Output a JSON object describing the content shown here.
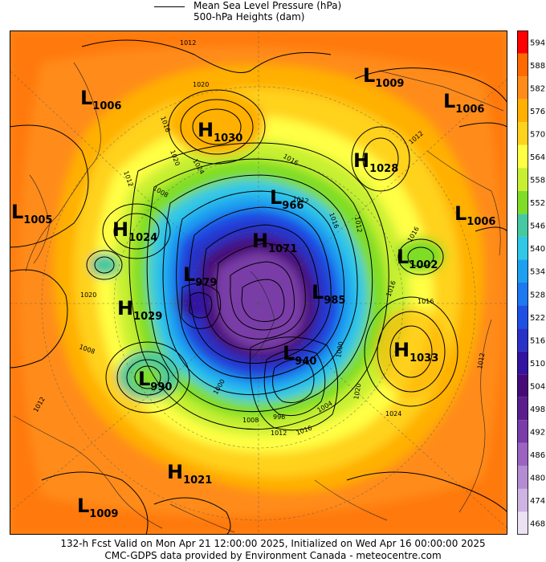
{
  "legend": {
    "line_label": "Mean Sea Level Pressure (hPa)",
    "fill_label": "500-hPa Heights (dam)"
  },
  "colorbar": {
    "labels": [
      "594",
      "588",
      "582",
      "576",
      "570",
      "564",
      "558",
      "552",
      "546",
      "540",
      "534",
      "528",
      "522",
      "516",
      "510",
      "504",
      "498",
      "492",
      "486",
      "480",
      "474",
      "468"
    ],
    "colors": [
      "#ff0000",
      "#ff6a00",
      "#ff8c1a",
      "#ffb000",
      "#ffd21e",
      "#ffff44",
      "#c8f032",
      "#7fdd28",
      "#46c8a0",
      "#30c8e6",
      "#1ea0f0",
      "#1e78f0",
      "#1e50e6",
      "#2832c8",
      "#3214a0",
      "#460a78",
      "#5a1e8c",
      "#7a3ca8",
      "#9a64c0",
      "#b48cd2",
      "#cdb4e2",
      "#ece2f4"
    ]
  },
  "lows": [
    {
      "letter": "L",
      "value": "1006"
    },
    {
      "letter": "L",
      "value": "1009"
    },
    {
      "letter": "L",
      "value": "1006"
    },
    {
      "letter": "L",
      "value": "1005"
    },
    {
      "letter": "L",
      "value": "1006"
    },
    {
      "letter": "L",
      "value": "966"
    },
    {
      "letter": "L",
      "value": "1002"
    },
    {
      "letter": "L",
      "value": "979"
    },
    {
      "letter": "L",
      "value": "985"
    },
    {
      "letter": "L",
      "value": "940"
    },
    {
      "letter": "L",
      "value": "990"
    },
    {
      "letter": "L",
      "value": "1009"
    }
  ],
  "highs": [
    {
      "letter": "H",
      "value": "1030"
    },
    {
      "letter": "H",
      "value": "1028"
    },
    {
      "letter": "H",
      "value": "1024"
    },
    {
      "letter": "H",
      "value": "1071"
    },
    {
      "letter": "H",
      "value": "1029"
    },
    {
      "letter": "H",
      "value": "1033"
    },
    {
      "letter": "H",
      "value": "1021"
    }
  ],
  "isobar_labels": [
    "1012",
    "1020",
    "1016",
    "1020",
    "1024",
    "1012",
    "1008",
    "1016",
    "1016",
    "1012",
    "1016",
    "1016",
    "1020",
    "1012",
    "1024",
    "1020",
    "1000",
    "1004",
    "1012",
    "1016",
    "996",
    "1008",
    "1012",
    "1008",
    "1000",
    "1012",
    "1012",
    "1016"
  ],
  "footer": {
    "line1": "132-h Fcst Valid on Mon Apr 21 12:00:00 2025, Initialized on Wed Apr 16 00:00:00 2025",
    "line2": "CMC-GDPS data provided by Environment Canada - meteocentre.com"
  }
}
